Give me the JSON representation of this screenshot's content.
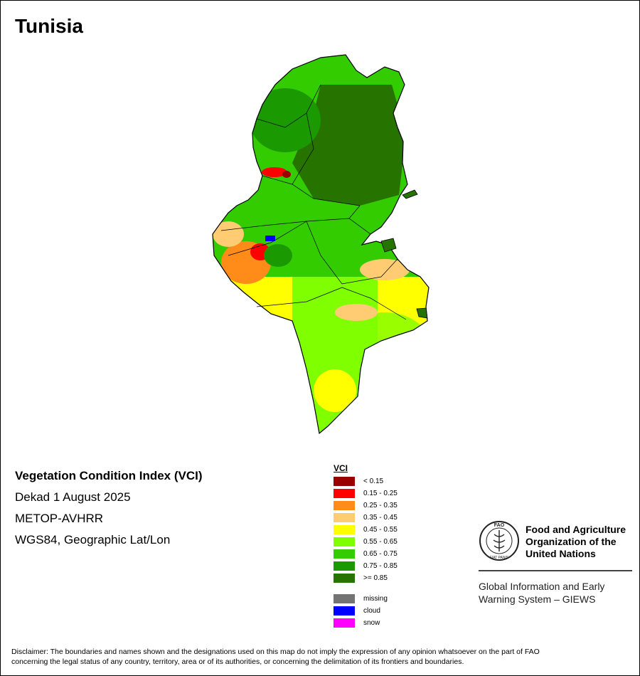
{
  "title": "Tunisia",
  "info": {
    "index_name": "Vegetation Condition Index (VCI)",
    "period": "Dekad 1 August 2025",
    "sensor": "METOP-AVHRR",
    "projection": "WGS84, Geographic Lat/Lon"
  },
  "legend": {
    "title": "VCI",
    "classes": [
      {
        "label": "< 0.15",
        "color": "#990000"
      },
      {
        "label": "0.15 - 0.25",
        "color": "#ff0000"
      },
      {
        "label": "0.25 - 0.35",
        "color": "#ff8c19"
      },
      {
        "label": "0.35 - 0.45",
        "color": "#ffcc73"
      },
      {
        "label": "0.45 - 0.55",
        "color": "#ffff00"
      },
      {
        "label": "0.55 - 0.65",
        "color": "#80ff00"
      },
      {
        "label": "0.65 - 0.75",
        "color": "#33cc00"
      },
      {
        "label": "0.75 - 0.85",
        "color": "#1a9900"
      },
      {
        "label": ">= 0.85",
        "color": "#267300"
      }
    ],
    "other": [
      {
        "label": "missing",
        "color": "#737373"
      },
      {
        "label": "cloud",
        "color": "#0000ff"
      },
      {
        "label": "snow",
        "color": "#ff00ff"
      }
    ]
  },
  "fao": {
    "org_line1": "Food and Agriculture",
    "org_line2": "Organization of the",
    "org_line3": "United Nations",
    "giews_line1": "Global Information and Early",
    "giews_line2": "Warning System – GIEWS",
    "logo_letters": "FAO",
    "logo_motto": "FIAT PANIS"
  },
  "disclaimer": {
    "line1": "Disclaimer: The boundaries and names shown and the designations used on this map do not imply the expression of any opinion whatsoever on the part of FAO",
    "line2": "concerning the legal status of any country, territory, area or of its authorities, or concerning the delimitation of its frontiers and boundaries."
  }
}
